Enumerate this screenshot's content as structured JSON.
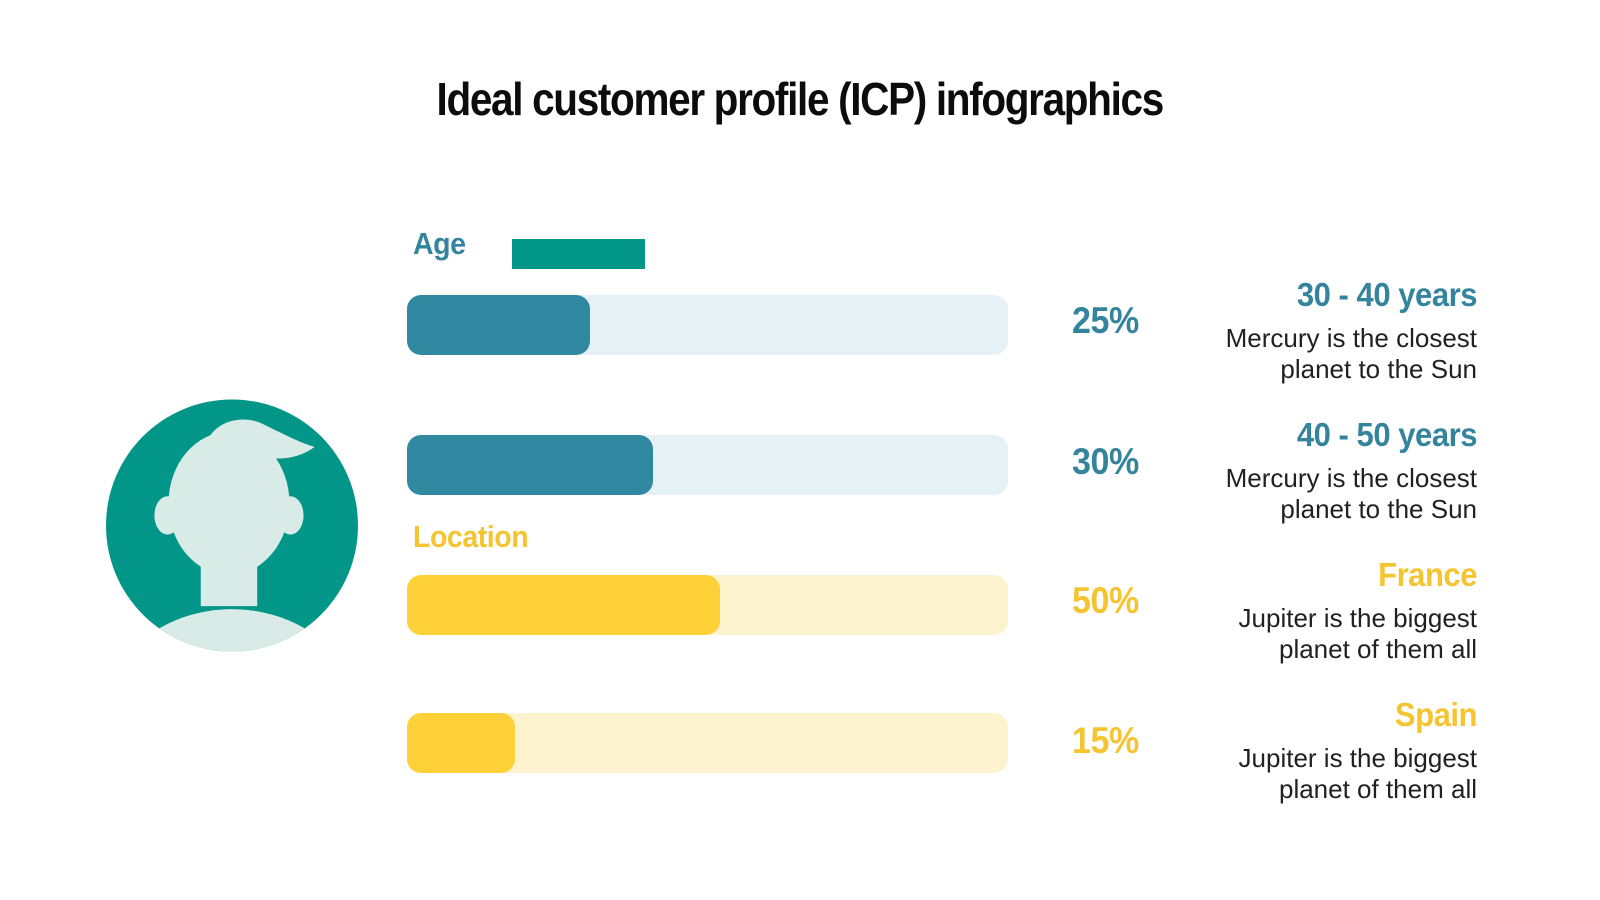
{
  "title": "Ideal customer profile (ICP) infographics",
  "avatar": {
    "icon": "person-avatar-icon",
    "circle_color": "#019687",
    "silhouette_color": "#d8ebe7"
  },
  "group_labels": {
    "age": "Age",
    "location": "Location"
  },
  "rows": [
    {
      "group": "Age",
      "percent_label": "25%",
      "value": 25,
      "bar_fill_pct": 30.5,
      "heading": "30 - 40 years",
      "description": [
        "Mercury is the closest",
        "planet to the Sun"
      ],
      "theme": "teal"
    },
    {
      "group": "Age",
      "percent_label": "30%",
      "value": 30,
      "bar_fill_pct": 41,
      "heading": "40 - 50 years",
      "description": [
        "Mercury is the closest",
        "planet to the Sun"
      ],
      "theme": "teal"
    },
    {
      "group": "Location",
      "percent_label": "50%",
      "value": 50,
      "bar_fill_pct": 52,
      "heading": "France",
      "description": [
        "Jupiter is the biggest",
        "planet of them all"
      ],
      "theme": "yellow"
    },
    {
      "group": "Location",
      "percent_label": "15%",
      "value": 15,
      "bar_fill_pct": 18,
      "heading": "Spain",
      "description": [
        "Jupiter is the biggest",
        "planet of them all"
      ],
      "theme": "yellow"
    }
  ],
  "colors": {
    "teal_text": "#35849e",
    "teal_bar_fill": "#3189a1",
    "teal_bar_track": "#e6f1f6",
    "green_accent": "#019687",
    "yellow_text": "#f5c431",
    "yellow_bar_fill": "#fdd137",
    "yellow_bar_track": "#fdf3cf",
    "avatar_silhouette": "#d8ebe7",
    "body_text": "#212121",
    "title_text": "#0c0c0c",
    "background": "#ffffff"
  },
  "chart_data": {
    "type": "bar",
    "orientation": "horizontal",
    "title": "Ideal customer profile (ICP) infographics",
    "categories": [
      "30 - 40 years",
      "40 - 50 years",
      "France",
      "Spain"
    ],
    "values": [
      25,
      30,
      50,
      15
    ],
    "unit": "%",
    "xlim": [
      0,
      100
    ],
    "grid": false,
    "legend": "none",
    "series": [
      {
        "name": "Age",
        "categories": [
          "30 - 40 years",
          "40 - 50 years"
        ],
        "values": [
          25,
          30
        ],
        "color": "#3189a1"
      },
      {
        "name": "Location",
        "categories": [
          "France",
          "Spain"
        ],
        "values": [
          50,
          15
        ],
        "color": "#fdd137"
      }
    ],
    "annotations": [
      "Mercury is the closest planet to the Sun",
      "Mercury is the closest planet to the Sun",
      "Jupiter is the biggest planet of them all",
      "Jupiter is the biggest planet of them all"
    ]
  }
}
